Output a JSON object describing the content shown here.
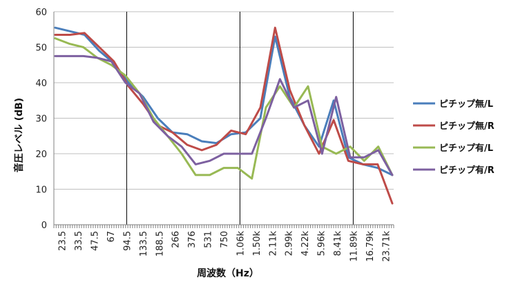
{
  "chart_data": {
    "type": "line",
    "xlabel": "周波数（Hz）",
    "ylabel": "音圧レベル (dB)",
    "ylim": [
      0,
      60
    ],
    "yticks": [
      "0",
      "10",
      "20",
      "30",
      "40",
      "50",
      "60"
    ],
    "x_tick_labels": [
      "23.5",
      "33.5",
      "47.5",
      "67",
      "94.5",
      "133.5",
      "188.5",
      "266",
      "376",
      "531",
      "750",
      "1.06k",
      "1.50k",
      "2.11k",
      "2.99k",
      "4.22k",
      "5.96k",
      "8.41k",
      "11.89k",
      "16.79k",
      "23.71k"
    ],
    "vertical_lines_at_tick_index": [
      4,
      11,
      18
    ],
    "legend_placement": "right",
    "grid": "horizontal",
    "series": [
      {
        "name": "ピチップ無/L",
        "color": "#4a7ebb",
        "values": [
          55.5,
          54.5,
          53.5,
          49,
          45.5,
          40,
          36,
          30,
          26,
          25.5,
          23.5,
          23,
          25.5,
          26,
          30,
          53,
          36,
          28,
          22,
          35,
          19,
          17,
          16,
          14
        ]
      },
      {
        "name": "ピチップ無/R",
        "color": "#be4b48",
        "values": [
          53.5,
          53.5,
          54,
          50,
          46,
          39,
          34,
          28,
          26,
          22.5,
          21,
          22.5,
          26.5,
          25.5,
          33,
          55.5,
          38,
          28,
          20,
          29.5,
          18,
          17,
          17,
          6
        ]
      },
      {
        "name": "ピチップ有/L",
        "color": "#98b954",
        "values": [
          52.5,
          51,
          50,
          47,
          45,
          42,
          37,
          30,
          25,
          20,
          14,
          14,
          16,
          16,
          13,
          33,
          39,
          33,
          39,
          22,
          20,
          22,
          18,
          22,
          14
        ]
      },
      {
        "name": "ピチップ有/R",
        "color": "#7d60a0",
        "values": [
          47.5,
          47.5,
          47.5,
          47,
          46,
          40,
          37,
          29,
          25,
          22,
          17,
          18,
          20,
          20,
          20,
          30,
          41,
          33,
          35,
          20,
          36,
          19,
          19,
          21,
          14
        ]
      }
    ]
  }
}
